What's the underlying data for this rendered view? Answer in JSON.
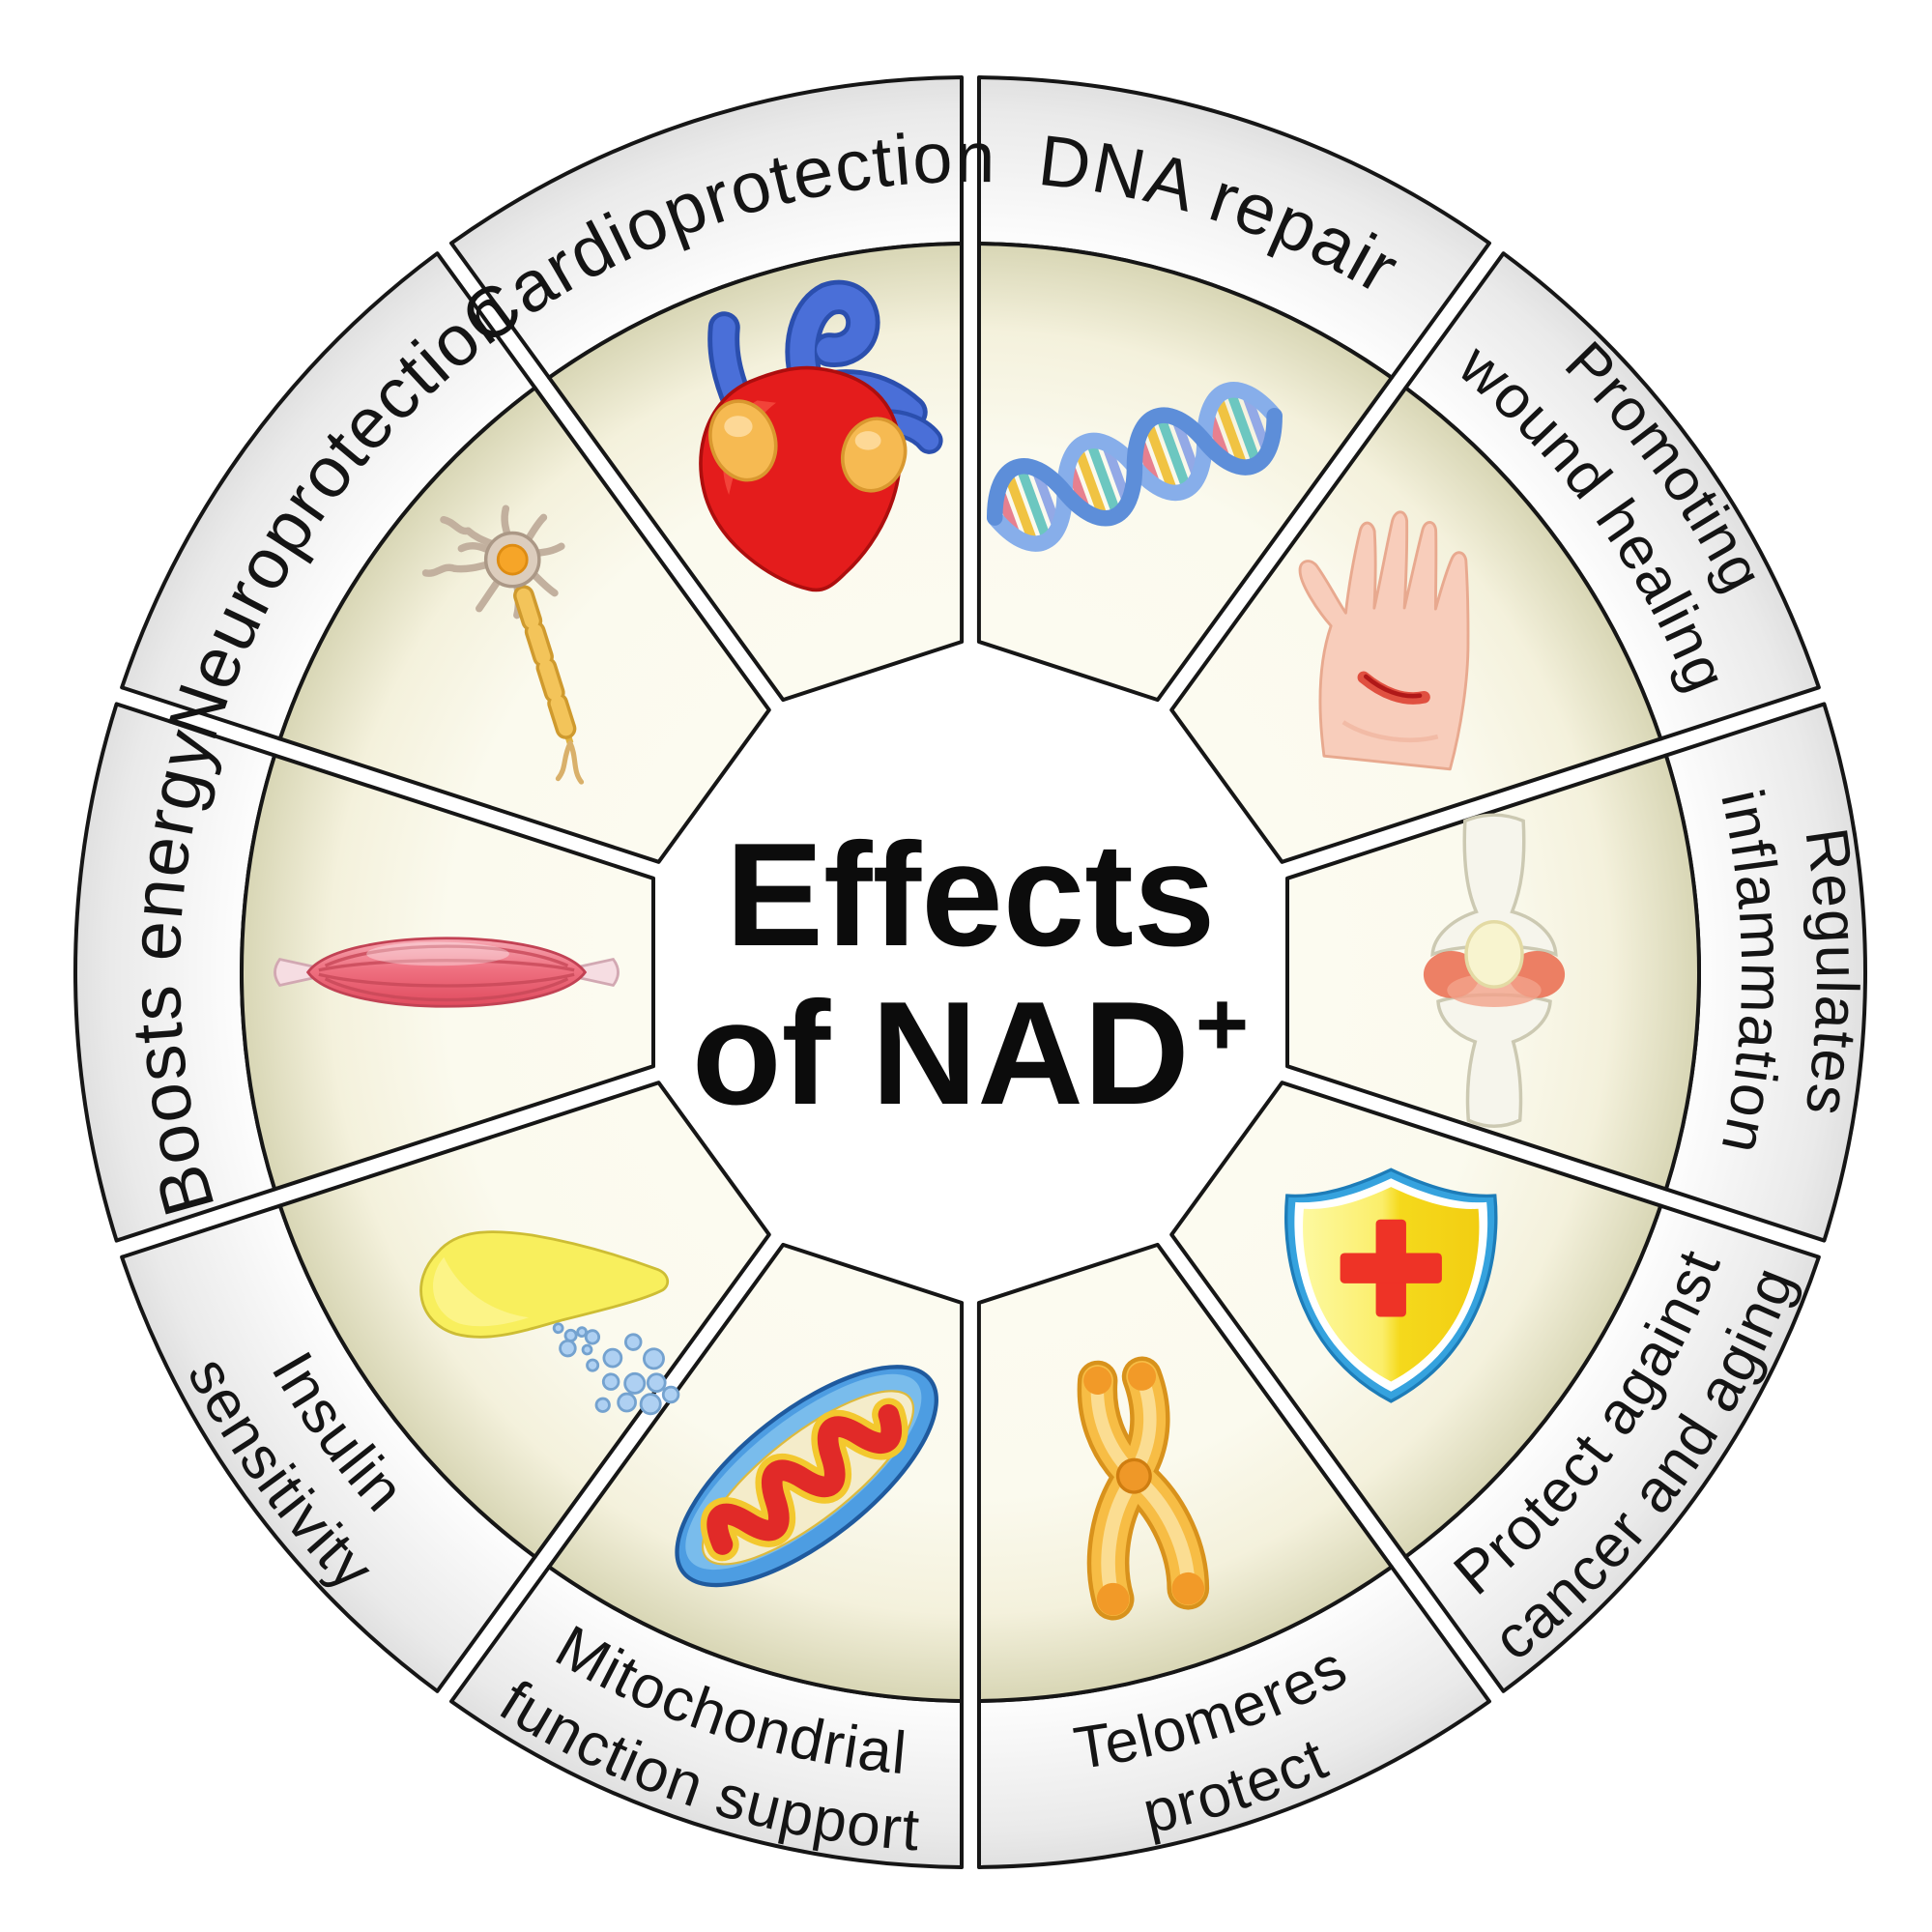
{
  "figure_type": "circular-effects-wheel",
  "title": {
    "line1": "Effects",
    "line2": "of NAD",
    "superscript": "+"
  },
  "center_label_full": "Effects of NAD+",
  "segments": [
    {
      "id": "dna-repair",
      "label_lines": [
        "DNA repair"
      ],
      "icon": "dna-helix-icon",
      "center_angle": 72,
      "text_flipped": false
    },
    {
      "id": "promoting-wound-healing",
      "label_lines": [
        "Promoting",
        "wound healing"
      ],
      "icon": "wounded-hand-icon",
      "center_angle": 36,
      "text_flipped": false
    },
    {
      "id": "regulates-inflammation",
      "label_lines": [
        "Regulates",
        "inflammation"
      ],
      "icon": "knee-joint-icon",
      "center_angle": 0,
      "text_flipped": false
    },
    {
      "id": "protect-against-cancer-and-aging",
      "label_lines": [
        "Protect against",
        "cancer and aging"
      ],
      "icon": "medical-shield-icon",
      "center_angle": -36,
      "text_flipped": true
    },
    {
      "id": "telomeres-protect",
      "label_lines": [
        "Telomeres",
        "protect"
      ],
      "icon": "chromosome-icon",
      "center_angle": -72,
      "text_flipped": true
    },
    {
      "id": "mitochondrial-function-support",
      "label_lines": [
        "Mitochondrial",
        "function support"
      ],
      "icon": "mitochondria-icon",
      "center_angle": -108,
      "text_flipped": true
    },
    {
      "id": "insulin-sensitivity",
      "label_lines": [
        "Insulin",
        "sensitivity"
      ],
      "icon": "pancreas-insulin-icon",
      "center_angle": -144,
      "text_flipped": true
    },
    {
      "id": "boosts-energy",
      "label_lines": [
        "Boosts energy"
      ],
      "icon": "muscle-icon",
      "center_angle": 180,
      "text_flipped": false
    },
    {
      "id": "neuroprotection",
      "label_lines": [
        "Neuroprotection"
      ],
      "icon": "neuron-icon",
      "center_angle": 144,
      "text_flipped": false
    },
    {
      "id": "cardioprotection",
      "label_lines": [
        "Cardioprotection"
      ],
      "icon": "heart-icon",
      "center_angle": 108,
      "text_flipped": false
    }
  ],
  "colors": {
    "background": "#ffffff",
    "outline": "#161616",
    "band_fill_inner": "#ffffff",
    "band_fill_outer": "#e0e0e0",
    "sector_fill_light": "#fbfaee",
    "sector_fill_mid": "#f4f1dc",
    "sector_fill_dark": "#d8d6b5",
    "label_text": "#141414",
    "title_text": "#0c0c0c"
  }
}
